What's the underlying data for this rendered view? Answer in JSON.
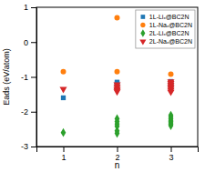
{
  "chart_data": {
    "type": "scatter",
    "xlabel": "n",
    "ylabel": "Eads (eV/atom)",
    "xlim": [
      0.5,
      3.5
    ],
    "ylim": [
      -3.0,
      1.0
    ],
    "xticks": [
      1,
      2,
      3
    ],
    "yticks": [
      -3,
      -2,
      -1,
      0,
      1
    ],
    "legend": "upper right",
    "series": [
      {
        "name": "1L-Liₓ@BC2N",
        "marker": "square",
        "x": [
          1,
          2,
          2,
          2,
          2,
          3,
          3,
          3,
          3,
          3
        ],
        "values": [
          -1.6,
          -1.15,
          -1.18,
          -1.21,
          -1.24,
          -1.13,
          -1.17,
          -1.2,
          -1.23,
          -1.26
        ]
      },
      {
        "name": "1L-Naₓ@BC2N",
        "marker": "circle",
        "x": [
          1,
          2,
          2,
          3
        ],
        "values": [
          -0.85,
          0.7,
          -0.85,
          -0.92
        ]
      },
      {
        "name": "2L-Liₓ@BC2N",
        "marker": "diamond",
        "x": [
          1,
          2,
          2,
          2,
          2,
          2,
          2,
          3,
          3,
          3,
          3,
          3,
          3,
          3,
          3
        ],
        "values": [
          -2.6,
          -2.2,
          -2.28,
          -2.35,
          -2.42,
          -2.55,
          -2.62,
          -2.1,
          -2.15,
          -2.2,
          -2.25,
          -2.28,
          -2.32,
          -2.36,
          -2.4
        ]
      },
      {
        "name": "2L-Naₓ@BC2N",
        "marker": "triangle-down",
        "x": [
          1,
          2,
          2,
          2,
          2,
          2,
          3,
          3,
          3,
          3,
          3,
          3,
          3
        ],
        "values": [
          -1.35,
          -1.22,
          -1.28,
          -1.34,
          -1.38,
          -1.42,
          -1.13,
          -1.18,
          -1.23,
          -1.28,
          -1.33,
          -1.38,
          -1.43
        ]
      }
    ]
  }
}
